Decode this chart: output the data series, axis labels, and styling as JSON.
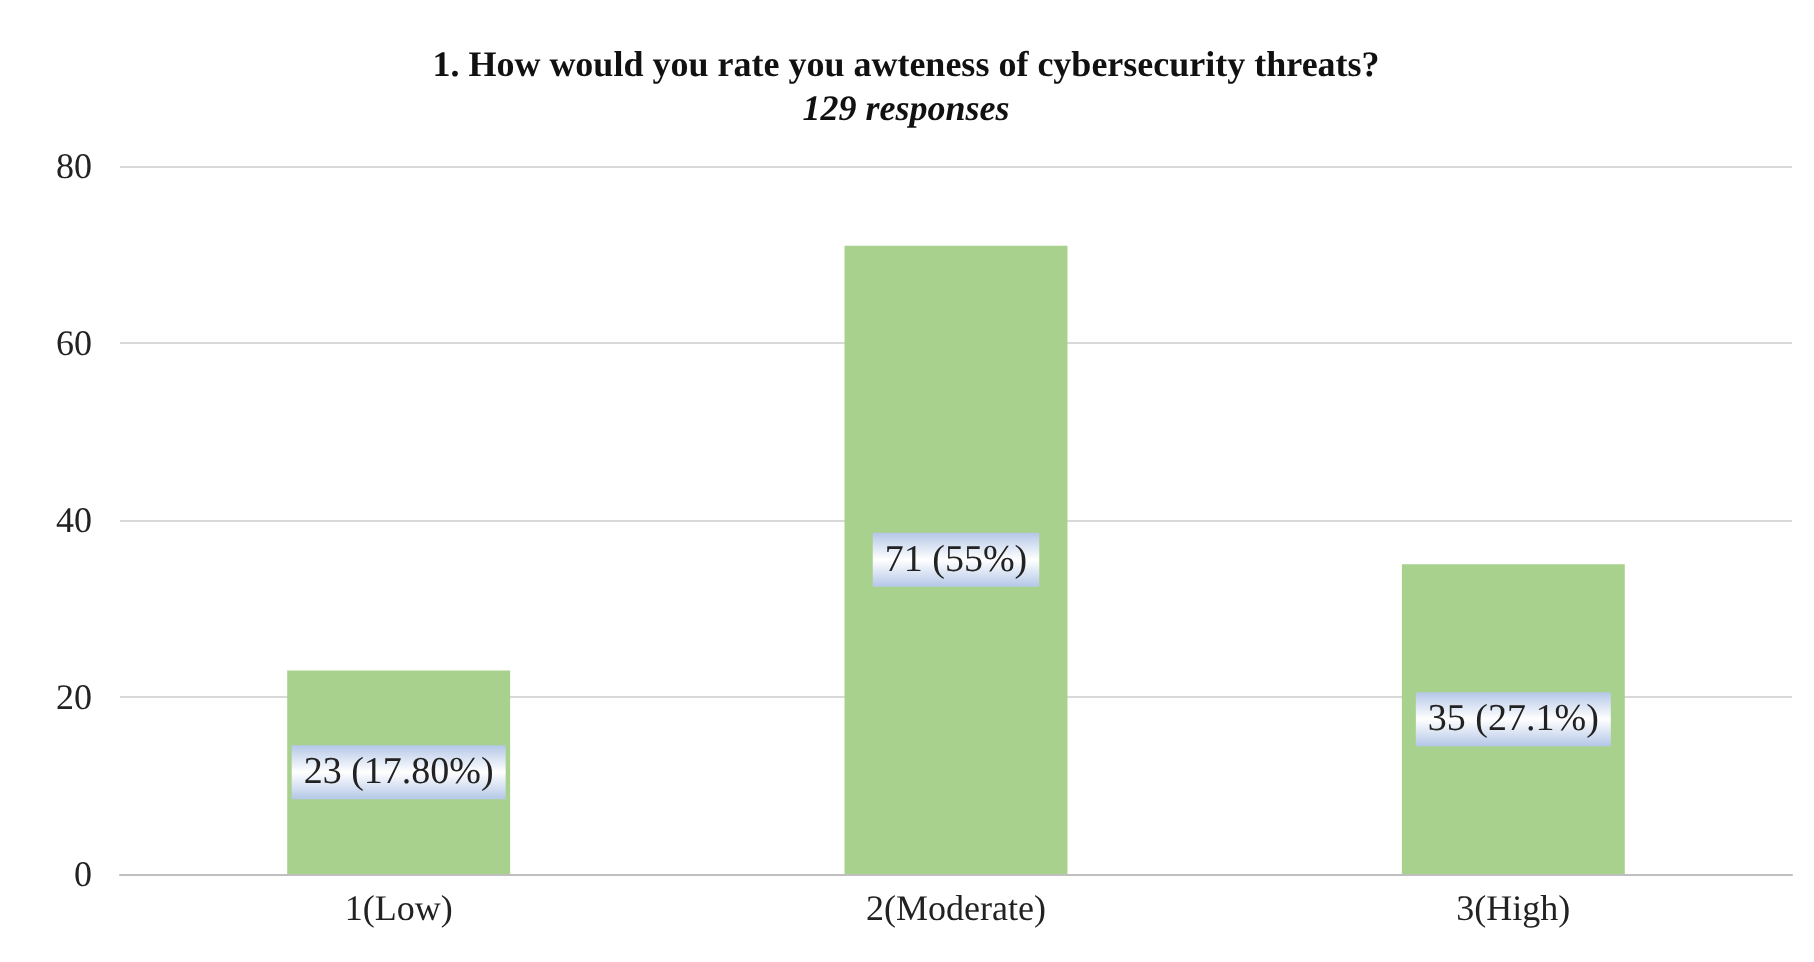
{
  "chart_data": {
    "type": "bar",
    "title": "1. How would you rate you awteness of cybersecurity threats?",
    "subtitle": "129 responses",
    "categories": [
      "1(Low)",
      "2(Moderate)",
      "3(High)"
    ],
    "values": [
      23,
      71,
      35
    ],
    "value_labels": [
      "23 (17.80%)",
      "71 (55%)",
      "35 (27.1%)"
    ],
    "color": "#a9d18e",
    "ylim": [
      0,
      80
    ],
    "yticks": [
      0,
      20,
      40,
      60,
      80
    ],
    "grid": "y"
  }
}
